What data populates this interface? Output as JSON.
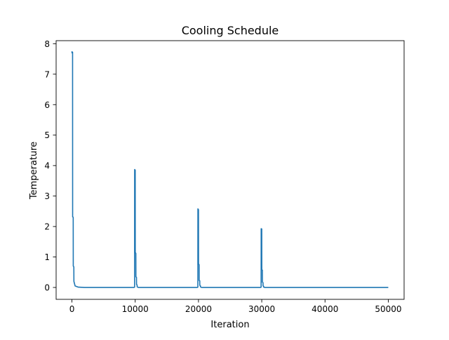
{
  "chart_data": {
    "type": "line",
    "title": "Cooling Schedule",
    "xlabel": "Iteration",
    "ylabel": "Temperature",
    "xlim": [
      -2500,
      52500
    ],
    "ylim": [
      -0.39,
      8.1
    ],
    "xticks": [
      0,
      10000,
      20000,
      30000,
      40000,
      50000
    ],
    "yticks": [
      0,
      1,
      2,
      3,
      4,
      5,
      6,
      7,
      8
    ],
    "grid": false,
    "legend": "none",
    "series": [
      {
        "color": "#1f77b4",
        "x": [
          0,
          10,
          100,
          110,
          200,
          210,
          300,
          310,
          500,
          1000,
          2000,
          5000,
          9800,
          9900,
          9910,
          10000,
          10010,
          10100,
          10110,
          10200,
          10210,
          10300,
          10310,
          10500,
          11000,
          15000,
          19800,
          19900,
          19910,
          20000,
          20010,
          20100,
          20110,
          20200,
          20210,
          20300,
          20310,
          20500,
          21000,
          25000,
          29800,
          29900,
          29910,
          30000,
          30010,
          30100,
          30110,
          30200,
          30210,
          30300,
          30310,
          30500,
          31000,
          35000,
          40000,
          45000,
          50000
        ],
        "y": [
          7.75,
          7.7,
          7.72,
          2.32,
          2.3,
          0.7,
          0.68,
          0.2,
          0.05,
          0.01,
          0,
          0,
          0,
          0.01,
          3.87,
          3.85,
          1.15,
          1.12,
          0.35,
          0.33,
          0.1,
          0.08,
          0.02,
          0,
          0,
          0,
          0,
          0.01,
          2.58,
          2.55,
          0.77,
          0.75,
          0.23,
          0.22,
          0.07,
          0.06,
          0.02,
          0,
          0,
          0,
          0,
          0.01,
          1.93,
          1.92,
          0.58,
          0.57,
          0.17,
          0.16,
          0.05,
          0.04,
          0.01,
          0,
          0,
          0,
          0,
          0,
          0
        ]
      }
    ]
  }
}
